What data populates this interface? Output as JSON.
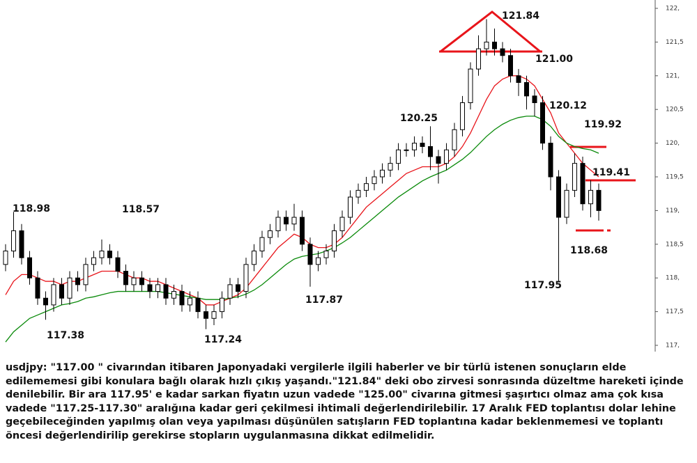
{
  "chart_data": {
    "type": "candlestick",
    "open": [
      118.2,
      118.4,
      118.7,
      118.3,
      118.0,
      117.7,
      117.6,
      117.9,
      117.7,
      118.0,
      117.9,
      118.2,
      118.3,
      118.4,
      118.3,
      118.1,
      117.9,
      118.0,
      117.9,
      117.8,
      117.9,
      117.7,
      117.8,
      117.6,
      117.7,
      117.5,
      117.4,
      117.5,
      117.7,
      117.9,
      117.8,
      118.2,
      118.4,
      118.6,
      118.7,
      118.9,
      118.8,
      118.9,
      118.5,
      118.2,
      118.3,
      118.4,
      118.7,
      118.9,
      119.2,
      119.3,
      119.4,
      119.5,
      119.6,
      119.7,
      119.9,
      119.9,
      120.0,
      119.95,
      119.8,
      119.7,
      119.9,
      120.2,
      120.6,
      121.1,
      121.4,
      121.5,
      121.4,
      121.3,
      121.0,
      120.9,
      120.7,
      120.6,
      120.0,
      119.5,
      118.9,
      119.3,
      119.7,
      119.1,
      119.3
    ],
    "high": [
      118.5,
      118.98,
      118.8,
      118.4,
      118.1,
      117.8,
      118.0,
      118.0,
      118.1,
      118.1,
      118.3,
      118.4,
      118.57,
      118.5,
      118.4,
      118.2,
      118.1,
      118.1,
      118.0,
      118.0,
      118.0,
      117.9,
      117.9,
      117.8,
      117.8,
      117.6,
      117.6,
      117.8,
      118.0,
      118.0,
      118.3,
      118.5,
      118.7,
      118.8,
      119.0,
      119.0,
      119.1,
      119.0,
      118.6,
      118.4,
      118.5,
      118.8,
      119.0,
      119.3,
      119.4,
      119.5,
      119.6,
      119.7,
      119.8,
      120.0,
      120.0,
      120.1,
      120.1,
      120.25,
      119.9,
      120.0,
      120.3,
      120.7,
      121.2,
      121.6,
      121.84,
      121.7,
      121.5,
      121.4,
      121.1,
      121.0,
      120.8,
      120.7,
      120.1,
      119.6,
      119.4,
      119.85,
      119.8,
      119.45,
      119.4
    ],
    "low": [
      118.1,
      118.3,
      118.2,
      117.9,
      117.6,
      117.38,
      117.5,
      117.6,
      117.6,
      117.8,
      117.8,
      118.1,
      118.2,
      118.2,
      118.0,
      117.8,
      117.8,
      117.8,
      117.7,
      117.7,
      117.6,
      117.6,
      117.5,
      117.5,
      117.4,
      117.24,
      117.3,
      117.4,
      117.6,
      117.7,
      117.7,
      118.1,
      118.3,
      118.5,
      118.6,
      118.7,
      118.7,
      118.4,
      117.87,
      118.1,
      118.2,
      118.3,
      118.6,
      118.8,
      119.1,
      119.2,
      119.3,
      119.4,
      119.5,
      119.6,
      119.8,
      119.8,
      119.85,
      119.6,
      119.4,
      119.6,
      119.8,
      120.1,
      120.5,
      121.0,
      121.3,
      121.3,
      121.2,
      120.9,
      120.7,
      120.5,
      120.4,
      119.9,
      119.3,
      117.95,
      118.8,
      119.2,
      119.0,
      118.9,
      118.85
    ],
    "close": [
      118.4,
      118.7,
      118.3,
      118.0,
      117.7,
      117.6,
      117.9,
      117.7,
      118.0,
      117.9,
      118.2,
      118.3,
      118.4,
      118.3,
      118.1,
      117.9,
      118.0,
      117.9,
      117.8,
      117.9,
      117.7,
      117.8,
      117.6,
      117.7,
      117.5,
      117.4,
      117.5,
      117.7,
      117.9,
      117.8,
      118.2,
      118.4,
      118.6,
      118.7,
      118.9,
      118.8,
      118.9,
      118.5,
      118.2,
      118.3,
      118.4,
      118.7,
      118.9,
      119.2,
      119.3,
      119.4,
      119.5,
      119.6,
      119.7,
      119.9,
      119.9,
      120.0,
      119.95,
      119.8,
      119.7,
      119.9,
      120.2,
      120.6,
      121.1,
      121.4,
      121.5,
      121.4,
      121.3,
      121.0,
      120.9,
      120.7,
      120.6,
      120.0,
      119.5,
      118.9,
      119.3,
      119.7,
      119.1,
      119.3,
      119.0
    ],
    "up_color": "#ffffff",
    "down_color": "#000000",
    "lines": [
      {
        "color": "#e8141a",
        "values": [
          117.75,
          117.95,
          118.05,
          118.05,
          118.0,
          117.95,
          117.95,
          117.9,
          117.95,
          117.95,
          118.0,
          118.05,
          118.1,
          118.1,
          118.1,
          118.05,
          118.0,
          118.0,
          117.95,
          117.95,
          117.9,
          117.85,
          117.8,
          117.75,
          117.7,
          117.6,
          117.6,
          117.65,
          117.7,
          117.75,
          117.85,
          118.0,
          118.15,
          118.3,
          118.45,
          118.55,
          118.65,
          118.6,
          118.5,
          118.45,
          118.45,
          118.5,
          118.6,
          118.75,
          118.9,
          119.05,
          119.15,
          119.25,
          119.35,
          119.45,
          119.55,
          119.6,
          119.65,
          119.65,
          119.65,
          119.7,
          119.8,
          119.95,
          120.15,
          120.4,
          120.65,
          120.85,
          120.95,
          121.0,
          121.0,
          120.95,
          120.85,
          120.65,
          120.45,
          120.15,
          120.0,
          119.85,
          119.7,
          119.6,
          119.5
        ]
      },
      {
        "color": "#0a8a0a",
        "values": [
          117.05,
          117.2,
          117.3,
          117.4,
          117.45,
          117.5,
          117.55,
          117.6,
          117.62,
          117.65,
          117.7,
          117.72,
          117.75,
          117.78,
          117.8,
          117.8,
          117.8,
          117.8,
          117.8,
          117.8,
          117.78,
          117.76,
          117.74,
          117.72,
          117.7,
          117.68,
          117.68,
          117.68,
          117.7,
          117.72,
          117.76,
          117.82,
          117.9,
          118.0,
          118.1,
          118.2,
          118.28,
          118.32,
          118.34,
          118.36,
          118.4,
          118.45,
          118.52,
          118.6,
          118.7,
          118.8,
          118.9,
          119.0,
          119.1,
          119.2,
          119.28,
          119.36,
          119.44,
          119.5,
          119.55,
          119.6,
          119.68,
          119.76,
          119.86,
          119.98,
          120.1,
          120.2,
          120.28,
          120.34,
          120.38,
          120.4,
          120.4,
          120.35,
          120.25,
          120.1,
          120.0,
          119.95,
          119.92,
          119.9,
          119.85
        ]
      }
    ],
    "ylim": [
      117,
      122
    ],
    "yticks": [
      {
        "value": 122,
        "label": "122,"
      },
      {
        "value": 121.5,
        "label": "121,5"
      },
      {
        "value": 121,
        "label": "121,"
      },
      {
        "value": 120.5,
        "label": "120,5"
      },
      {
        "value": 120,
        "label": "120,"
      },
      {
        "value": 119.5,
        "label": "119,5"
      },
      {
        "value": 119,
        "label": "119,"
      },
      {
        "value": 118.5,
        "label": "118,5"
      },
      {
        "value": 118,
        "label": "118,"
      },
      {
        "value": 117.5,
        "label": "117,5"
      },
      {
        "value": 117,
        "label": "117,"
      }
    ],
    "annotations": [
      "118.98",
      "118.57",
      "117.38",
      "117.24",
      "117.87",
      "120.25",
      "121.84",
      "121.00",
      "120.12",
      "119.92",
      "119.41",
      "118.68",
      "117.95"
    ]
  },
  "caption": "usdjpy: \"117.00 \" civarından itibaren Japonyadaki vergilerle ilgili haberler ve bir türlü istenen sonuçların elde edilememesi gibi konulara bağlı olarak hızlı çıkış yaşandı.\"121.84\" deki obo zirvesi sonrasında düzeltme hareketi içinde denilebilir. Bir ara 117.95' e kadar sarkan fiyatın uzun vadede \"125.00\" civarına gitmesi şaşırtıcı olmaz ama çok kısa vadede \"117.25-117.30\" aralığına kadar geri çekilmesi ihtimali değerlendirilebilir. 17 Aralık FED toplantısı dolar lehine geçebileceğinden yapılmış olan veya yapılması düşünülen satışların FED toplantına kadar beklenmemesi ve toplantı öncesi değerlendirilip gerekirse stopların uygulanmasına dikkat edilmelidir."
}
